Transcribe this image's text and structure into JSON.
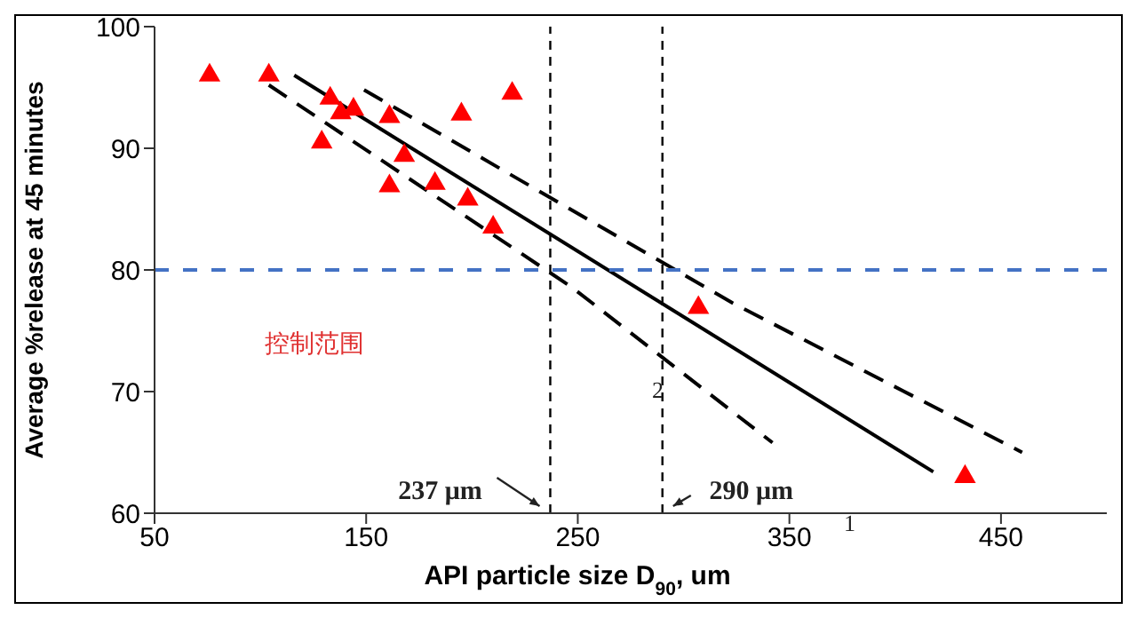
{
  "chart_data": {
    "type": "scatter",
    "xlabel": "API particle size D$_{90}$, um",
    "ylabel": "Average %release at 45 minutes",
    "xlim": [
      50,
      500
    ],
    "xticks": [
      50,
      150,
      250,
      350,
      450
    ],
    "ylim": [
      60,
      100
    ],
    "yticks": [
      60,
      70,
      80,
      90,
      100
    ],
    "series": [
      {
        "color": "#ff0000",
        "marker": "triangle",
        "x": [
          76,
          104,
          129,
          133,
          138,
          144,
          161,
          161,
          168,
          182.5,
          195,
          198,
          210,
          219,
          307,
          433
        ],
        "values": [
          96,
          96,
          90.5,
          94.1,
          92.9,
          93.2,
          92.6,
          86.9,
          89.4,
          87.1,
          92.8,
          85.8,
          83.5,
          94.5,
          76.9,
          63
        ]
      },
      {
        "type": "line",
        "color": "#000000",
        "line_style": "solid",
        "marker": "none",
        "x": [
          116,
          418
        ],
        "values": [
          96,
          63.4
        ]
      },
      {
        "type": "line",
        "color": "#000000",
        "line_style": "dashed",
        "marker": "none",
        "x": [
          149,
          323,
          460
        ],
        "values": [
          94.8,
          77.3,
          65
        ]
      },
      {
        "type": "line",
        "color": "#000000",
        "line_style": "dashed",
        "marker": "none",
        "x": [
          104,
          247,
          342
        ],
        "values": [
          95.2,
          78.6,
          65.8
        ]
      }
    ],
    "ref_lines": [
      {
        "axis": "y",
        "value": 80,
        "color": "#4472c4",
        "line_style": "dashed"
      },
      {
        "axis": "x",
        "value": 237,
        "label": "237 μm",
        "color": "#000000",
        "line_style": "dashed"
      },
      {
        "axis": "x",
        "value": 290,
        "label": "290 μm",
        "color": "#000000",
        "line_style": "dashed"
      }
    ],
    "annotations": [
      "控制范围",
      "2",
      "1"
    ]
  }
}
